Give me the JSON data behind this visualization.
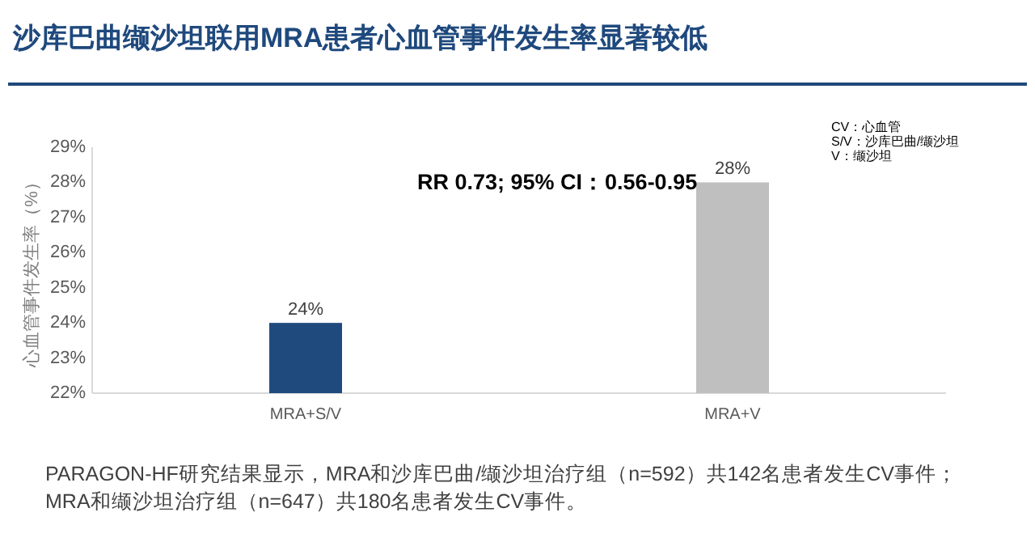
{
  "chart_data": {
    "type": "bar",
    "title": "沙库巴曲缬沙坦联用MRA患者心血管事件发生率显著较低",
    "ylabel": "心血管事件发生率（%）",
    "categories": [
      "MRA+S/V",
      "MRA+V"
    ],
    "values": [
      24,
      28
    ],
    "colors": [
      "#1f4a7e",
      "#bfbfbf"
    ],
    "ylim": [
      22,
      29
    ],
    "yticks": [
      {
        "value": 22,
        "label": "22%"
      },
      {
        "value": 23,
        "label": "23%"
      },
      {
        "value": 24,
        "label": "24%"
      },
      {
        "value": 25,
        "label": "25%"
      },
      {
        "value": 26,
        "label": "26%"
      },
      {
        "value": 27,
        "label": "27%"
      },
      {
        "value": 28,
        "label": "28%"
      },
      {
        "value": 29,
        "label": "29%"
      }
    ],
    "value_labels": [
      "24%",
      "28%"
    ],
    "grid": false,
    "annotations": [
      "RR 0.73; 95% CI：0.56-0.95",
      "CV：心血管",
      "S/V：沙库巴曲/缬沙坦",
      "V：缬沙坦",
      "PARAGON-HF研究结果显示，MRA和沙库巴曲/缬沙坦治疗组（n=592）共142名患者发生CV事件； MRA和缬沙坦治疗组（n=647）共180名患者发生CV事件。"
    ]
  }
}
